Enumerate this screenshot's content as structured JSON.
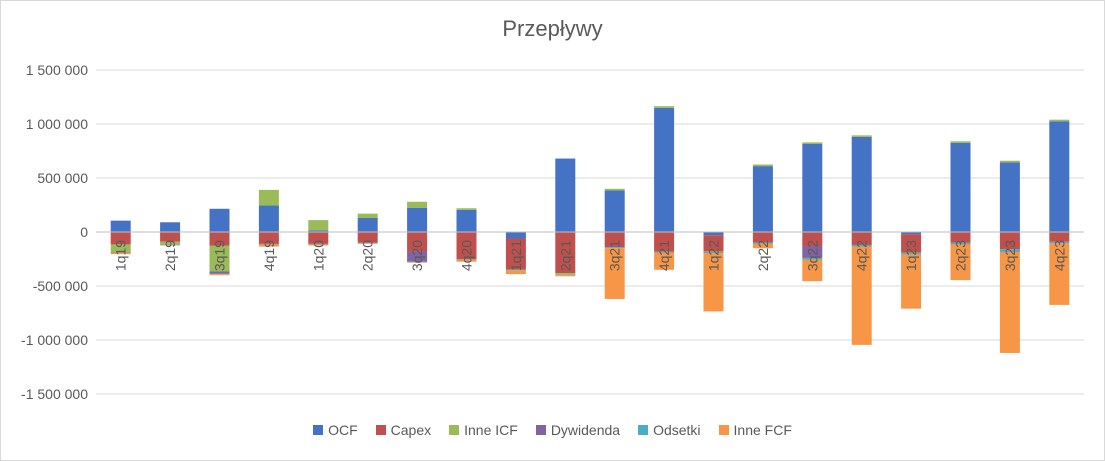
{
  "chart_data": {
    "type": "bar",
    "stacked": true,
    "title": "Przepływy",
    "xlabel": "",
    "ylabel": "",
    "ylim": [
      -1500000,
      1500000
    ],
    "yticks": [
      1500000,
      1000000,
      500000,
      0,
      -500000,
      -1000000,
      -1500000
    ],
    "ytick_labels": [
      "1 500 000",
      "1 000 000",
      "500 000",
      "0",
      "-500 000",
      "-1 000 000",
      "-1 500 000"
    ],
    "grid": true,
    "legend_position": "bottom",
    "categories": [
      "1q19",
      "2q19",
      "3q19",
      "4q19",
      "1q20",
      "2q20",
      "3q20",
      "4q20",
      "1q21",
      "2q21",
      "3q21",
      "4q21",
      "1q22",
      "2q22",
      "3q22",
      "4q22",
      "1q23",
      "2q23",
      "3q23",
      "4q23"
    ],
    "series": [
      {
        "name": "OCF",
        "color": "#4472c4",
        "values": [
          105000,
          90000,
          215000,
          245000,
          15000,
          130000,
          225000,
          205000,
          -60000,
          680000,
          385000,
          1150000,
          -30000,
          610000,
          815000,
          880000,
          -20000,
          825000,
          645000,
          1025000
        ]
      },
      {
        "name": "Capex",
        "color": "#c0504d",
        "values": [
          -115000,
          -90000,
          -125000,
          -110000,
          -110000,
          -100000,
          -180000,
          -250000,
          -290000,
          -380000,
          -140000,
          -180000,
          -150000,
          -100000,
          -130000,
          -120000,
          -170000,
          -100000,
          -160000,
          -90000
        ]
      },
      {
        "name": "Inne ICF",
        "color": "#9bbb59",
        "values": [
          -70000,
          -25000,
          -240000,
          145000,
          95000,
          40000,
          55000,
          15000,
          -5000,
          -15000,
          15000,
          15000,
          -5000,
          15000,
          15000,
          15000,
          -5000,
          15000,
          15000,
          15000
        ]
      },
      {
        "name": "Dywidenda",
        "color": "#8064a2",
        "values": [
          0,
          0,
          -20000,
          0,
          0,
          0,
          -95000,
          0,
          0,
          0,
          0,
          0,
          0,
          0,
          -110000,
          0,
          0,
          0,
          0,
          0
        ]
      },
      {
        "name": "Odsetki",
        "color": "#4bacc6",
        "values": [
          -5000,
          -5000,
          -5000,
          -5000,
          -5000,
          -5000,
          -5000,
          -5000,
          -5000,
          -5000,
          -10000,
          -10000,
          -10000,
          -10000,
          -15000,
          -15000,
          -15000,
          -15000,
          -25000,
          -15000
        ]
      },
      {
        "name": "Inne FCF",
        "color": "#f79646",
        "values": [
          -15000,
          -5000,
          -10000,
          -20000,
          -10000,
          -5000,
          -5000,
          -20000,
          -30000,
          -10000,
          -470000,
          -160000,
          -540000,
          -40000,
          -200000,
          -910000,
          -500000,
          -330000,
          -935000,
          -570000
        ]
      }
    ]
  }
}
